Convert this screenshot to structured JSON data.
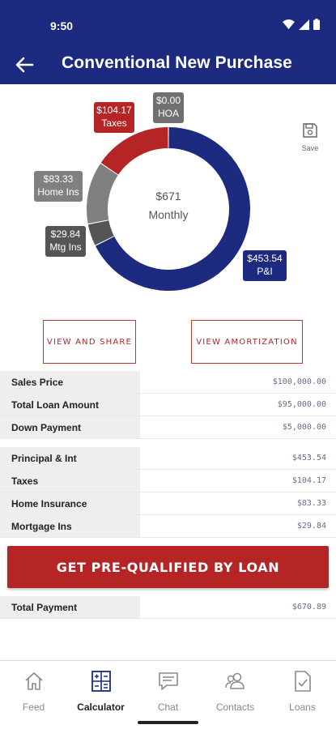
{
  "status_bar": {
    "time": "9:50"
  },
  "app_bar": {
    "title": "Conventional New Purchase"
  },
  "chart": {
    "center_amount": "$671",
    "center_label": "Monthly",
    "labels": {
      "taxes": {
        "amount": "$104.17",
        "name": "Taxes"
      },
      "hoa": {
        "amount": "$0.00",
        "name": "HOA"
      },
      "home_ins": {
        "amount": "$83.33",
        "name": "Home Ins"
      },
      "mtg_ins": {
        "amount": "$29.84",
        "name": "Mtg Ins"
      },
      "pi": {
        "amount": "$453.54",
        "name": "P&I"
      }
    }
  },
  "chart_data": {
    "type": "pie",
    "categories": [
      "P&I",
      "Mtg Ins",
      "Home Ins",
      "Taxes",
      "HOA"
    ],
    "values": [
      453.54,
      29.84,
      83.33,
      104.17,
      0.0
    ],
    "colors": [
      "#1c2a80",
      "#555555",
      "#808080",
      "#b52525",
      "#707070"
    ]
  },
  "save": {
    "label": "Save"
  },
  "buttons": {
    "view_share": "VIEW AND SHARE",
    "view_amortization": "VIEW AMORTIZATION"
  },
  "loan_table": [
    {
      "label": "Sales Price",
      "value": "$100,000.00"
    },
    {
      "label": "Total Loan Amount",
      "value": "$95,000.00"
    },
    {
      "label": "Down Payment",
      "value": "$5,000.00"
    }
  ],
  "payment_table": [
    {
      "label": "Principal & Int",
      "value": "$453.54"
    },
    {
      "label": "Taxes",
      "value": "$104.17"
    },
    {
      "label": "Home Insurance",
      "value": "$83.33"
    },
    {
      "label": "Mortgage Ins",
      "value": "$29.84"
    }
  ],
  "cta": {
    "label": "GET PRE-QUALIFIED BY LOAN"
  },
  "total": {
    "label": "Total Payment",
    "value": "$670.89"
  },
  "tabs": [
    {
      "label": "Feed",
      "icon": "home-icon"
    },
    {
      "label": "Calculator",
      "icon": "calculator-icon"
    },
    {
      "label": "Chat",
      "icon": "chat-icon"
    },
    {
      "label": "Contacts",
      "icon": "contacts-icon"
    },
    {
      "label": "Loans",
      "icon": "document-check-icon"
    }
  ],
  "active_tab": "Calculator"
}
